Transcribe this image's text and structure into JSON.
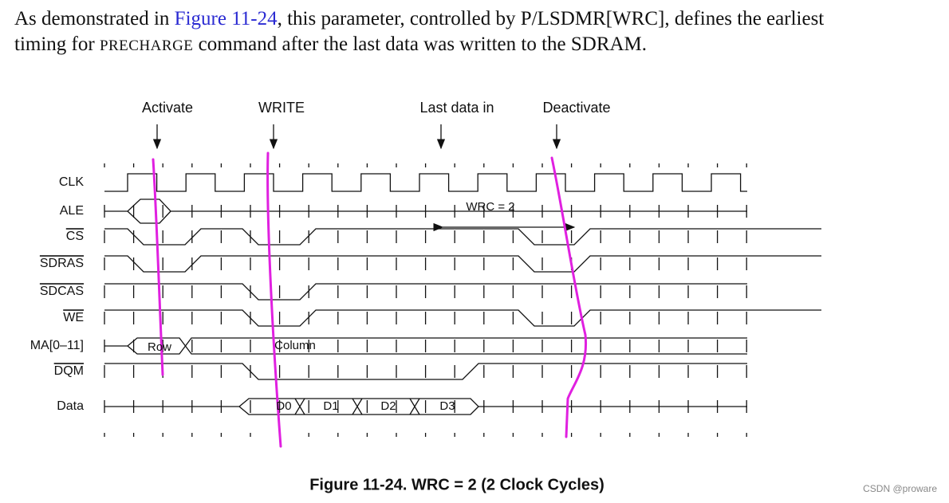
{
  "paragraph": {
    "line1": [
      "As demonstrated in ",
      "Figure 11-24",
      ", this parameter, controlled by P/LSDMR[WRC], defines the earliest"
    ],
    "line2": [
      "timing for ",
      "PRECHARGE",
      " command after the last data was written to the SDRAM."
    ]
  },
  "diagram": {
    "events": [
      "Activate",
      "WRITE",
      "Last data in",
      "Deactivate"
    ],
    "signals": [
      "CLK",
      "ALE",
      "CS",
      "SDRAS",
      "SDCAS",
      "WE",
      "MA[0–11]",
      "DQM",
      "Data"
    ],
    "wrc": "WRC = 2",
    "row": "Row",
    "column": "Column",
    "data": [
      "D0",
      "D1",
      "D2",
      "D3"
    ]
  },
  "caption": "Figure 11-24. WRC = 2 (2 Clock Cycles)",
  "watermark": "CSDN @proware"
}
